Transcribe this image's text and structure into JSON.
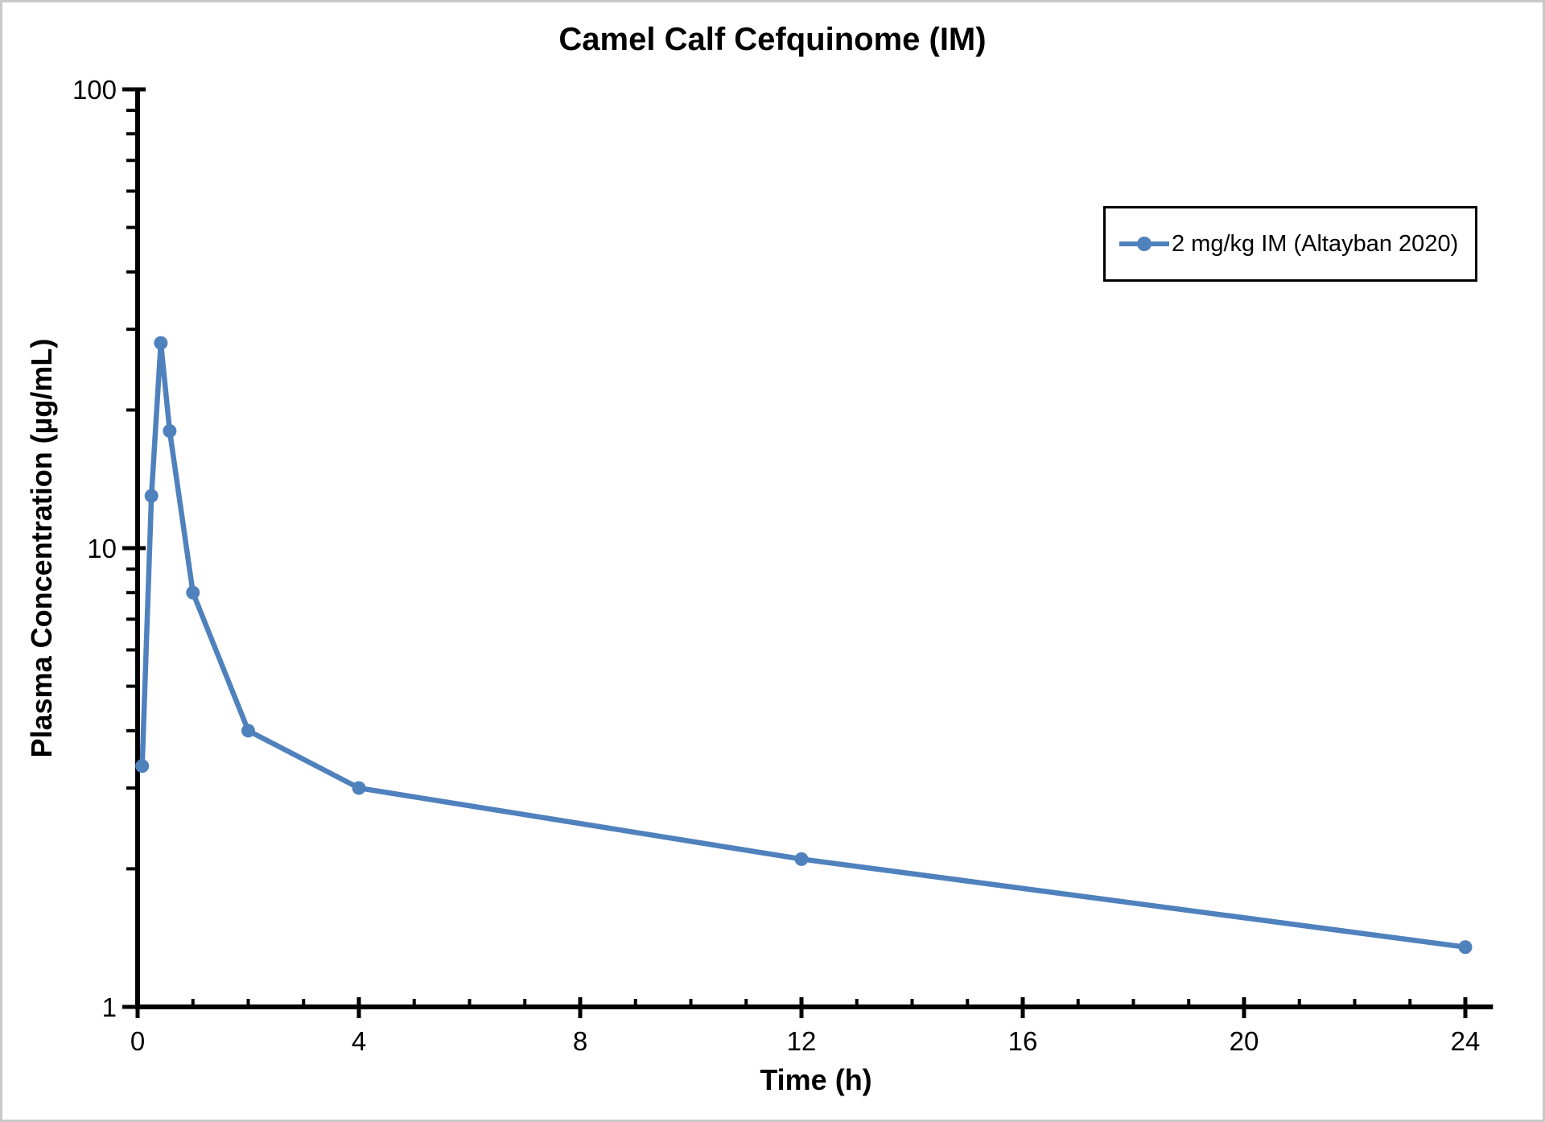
{
  "title": "Camel Calf Cefquinome (IM)",
  "legend": {
    "label": "2 mg/kg IM (Altayban 2020)"
  },
  "colors": {
    "series": "#4F81BD",
    "axis": "#000000",
    "background": "#FFFFFF",
    "canvas_border": "#C9C9C9",
    "legend_border": "#000000"
  },
  "chart_data": {
    "type": "line",
    "title": "Camel Calf Cefquinome (IM)",
    "xlabel": "Time (h)",
    "ylabel": "Plasma Concentration (µg/mL)",
    "x_major_ticks": [
      0,
      4,
      8,
      12,
      16,
      20,
      24
    ],
    "x_minor_every": 1,
    "xlim": [
      0,
      24.5
    ],
    "y_scale": "log",
    "ylim": [
      1,
      100
    ],
    "y_major_ticks": [
      1,
      10,
      100
    ],
    "grid": false,
    "legend_position": "upper right",
    "series": [
      {
        "name": "2 mg/kg IM (Altayban 2020)",
        "color": "#4F81BD",
        "marker": "circle",
        "x": [
          0.083,
          0.25,
          0.42,
          0.58,
          1,
          2,
          4,
          12,
          24
        ],
        "y": [
          3.35,
          13,
          28,
          18,
          8,
          4,
          3,
          2.1,
          1.35
        ]
      }
    ]
  }
}
